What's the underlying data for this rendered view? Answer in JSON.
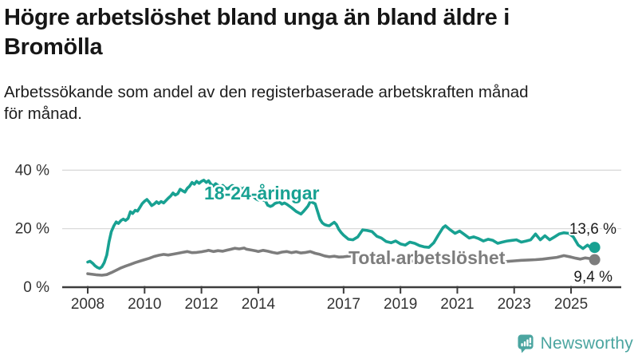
{
  "header": {},
  "chart_data": {
    "type": "line",
    "title": "Högre arbetslöshet bland unga än bland äldre i\nBromölla",
    "subtitle": "Arbetssökande som andel av den registerbaserade arbetskraften månad\nför månad.",
    "x_unit": "year (decimal = monthly values)",
    "xlim": [
      2007.1,
      2026.75
    ],
    "ylim": [
      0,
      43
    ],
    "grid": "horizontal",
    "y_ticks": [
      {
        "value": 0,
        "label": "0 %"
      },
      {
        "value": 20,
        "label": "20 %"
      },
      {
        "value": 40,
        "label": "40 %"
      }
    ],
    "x_ticks": [
      {
        "value": 2008,
        "label": "2008"
      },
      {
        "value": 2010,
        "label": "2010"
      },
      {
        "value": 2012,
        "label": "2012"
      },
      {
        "value": 2014,
        "label": "2014"
      },
      {
        "value": 2017,
        "label": "2017"
      },
      {
        "value": 2019,
        "label": "2019"
      },
      {
        "value": 2021,
        "label": "2021"
      },
      {
        "value": 2023,
        "label": "2023"
      },
      {
        "value": 2025,
        "label": "2025"
      }
    ],
    "legend_position": "inline-labels-on-lines",
    "series": [
      {
        "name": "18-24-åringar",
        "color": "#18a192",
        "end_label": "13,6 %",
        "end_value": 13.6,
        "points": [
          [
            2008.0,
            8.6
          ],
          [
            2008.08,
            8.9
          ],
          [
            2008.17,
            8.2
          ],
          [
            2008.25,
            7.4
          ],
          [
            2008.33,
            6.8
          ],
          [
            2008.42,
            6.4
          ],
          [
            2008.5,
            7.0
          ],
          [
            2008.58,
            8.4
          ],
          [
            2008.67,
            11.0
          ],
          [
            2008.75,
            15.5
          ],
          [
            2008.83,
            19.0
          ],
          [
            2008.92,
            21.0
          ],
          [
            2009.0,
            22.3
          ],
          [
            2009.08,
            21.8
          ],
          [
            2009.17,
            22.8
          ],
          [
            2009.25,
            23.3
          ],
          [
            2009.33,
            22.8
          ],
          [
            2009.42,
            23.5
          ],
          [
            2009.5,
            25.8
          ],
          [
            2009.58,
            25.2
          ],
          [
            2009.67,
            26.3
          ],
          [
            2009.75,
            26.0
          ],
          [
            2009.83,
            27.2
          ],
          [
            2009.92,
            28.6
          ],
          [
            2010.0,
            29.4
          ],
          [
            2010.08,
            30.0
          ],
          [
            2010.17,
            29.0
          ],
          [
            2010.25,
            27.9
          ],
          [
            2010.33,
            28.4
          ],
          [
            2010.42,
            29.2
          ],
          [
            2010.5,
            28.6
          ],
          [
            2010.58,
            29.3
          ],
          [
            2010.67,
            28.8
          ],
          [
            2010.75,
            29.6
          ],
          [
            2010.83,
            30.4
          ],
          [
            2010.92,
            31.2
          ],
          [
            2011.0,
            32.2
          ],
          [
            2011.08,
            31.5
          ],
          [
            2011.17,
            32.0
          ],
          [
            2011.25,
            33.5
          ],
          [
            2011.33,
            33.0
          ],
          [
            2011.42,
            32.5
          ],
          [
            2011.5,
            33.8
          ],
          [
            2011.58,
            34.5
          ],
          [
            2011.67,
            35.8
          ],
          [
            2011.75,
            35.2
          ],
          [
            2011.83,
            36.2
          ],
          [
            2011.92,
            35.5
          ],
          [
            2012.0,
            36.2
          ],
          [
            2012.08,
            36.6
          ],
          [
            2012.17,
            35.8
          ],
          [
            2012.25,
            36.4
          ],
          [
            2012.33,
            35.2
          ],
          [
            2012.42,
            34.6
          ],
          [
            2012.5,
            35.4
          ],
          [
            2012.58,
            34.8
          ],
          [
            2012.67,
            34.2
          ],
          [
            2012.75,
            34.8
          ],
          [
            2012.83,
            34.0
          ],
          [
            2012.92,
            33.6
          ],
          [
            2013.0,
            34.2
          ],
          [
            2013.08,
            34.8
          ],
          [
            2013.17,
            34.4
          ],
          [
            2013.25,
            33.8
          ],
          [
            2013.33,
            34.2
          ],
          [
            2013.42,
            33.6
          ],
          [
            2013.5,
            34.0
          ],
          [
            2013.58,
            33.4
          ],
          [
            2013.67,
            32.6
          ],
          [
            2013.75,
            31.8
          ],
          [
            2013.83,
            31.0
          ],
          [
            2013.92,
            30.2
          ],
          [
            2014.0,
            29.8
          ],
          [
            2014.08,
            30.2
          ],
          [
            2014.17,
            29.8
          ],
          [
            2014.25,
            29.5
          ],
          [
            2014.33,
            28.0
          ],
          [
            2014.42,
            27.6
          ],
          [
            2014.5,
            27.9
          ],
          [
            2014.58,
            28.6
          ],
          [
            2014.67,
            28.9
          ],
          [
            2014.75,
            29.1
          ],
          [
            2014.83,
            28.4
          ],
          [
            2014.92,
            28.8
          ],
          [
            2015.0,
            28.4
          ],
          [
            2015.17,
            27.2
          ],
          [
            2015.33,
            25.9
          ],
          [
            2015.5,
            25.0
          ],
          [
            2015.58,
            25.8
          ],
          [
            2015.67,
            26.8
          ],
          [
            2015.75,
            27.8
          ],
          [
            2015.83,
            29.3
          ],
          [
            2015.92,
            28.9
          ],
          [
            2016.0,
            28.5
          ],
          [
            2016.08,
            26.0
          ],
          [
            2016.17,
            23.2
          ],
          [
            2016.25,
            22.0
          ],
          [
            2016.33,
            21.4
          ],
          [
            2016.42,
            21.1
          ],
          [
            2016.5,
            21.0
          ],
          [
            2016.58,
            21.6
          ],
          [
            2016.67,
            22.2
          ],
          [
            2016.75,
            21.4
          ],
          [
            2016.83,
            19.8
          ],
          [
            2016.92,
            18.6
          ],
          [
            2017.0,
            17.8
          ],
          [
            2017.17,
            16.4
          ],
          [
            2017.33,
            16.2
          ],
          [
            2017.5,
            17.2
          ],
          [
            2017.67,
            19.6
          ],
          [
            2017.83,
            19.4
          ],
          [
            2018.0,
            19.0
          ],
          [
            2018.17,
            17.4
          ],
          [
            2018.33,
            16.8
          ],
          [
            2018.5,
            15.6
          ],
          [
            2018.67,
            15.2
          ],
          [
            2018.83,
            15.8
          ],
          [
            2019.0,
            14.8
          ],
          [
            2019.17,
            14.4
          ],
          [
            2019.33,
            15.4
          ],
          [
            2019.5,
            15.0
          ],
          [
            2019.67,
            14.2
          ],
          [
            2019.83,
            13.8
          ],
          [
            2020.0,
            13.6
          ],
          [
            2020.17,
            15.2
          ],
          [
            2020.33,
            17.8
          ],
          [
            2020.5,
            20.4
          ],
          [
            2020.58,
            21.0
          ],
          [
            2020.75,
            19.6
          ],
          [
            2020.92,
            18.4
          ],
          [
            2021.08,
            19.2
          ],
          [
            2021.25,
            18.0
          ],
          [
            2021.42,
            16.8
          ],
          [
            2021.58,
            17.2
          ],
          [
            2021.75,
            16.6
          ],
          [
            2021.92,
            15.8
          ],
          [
            2022.08,
            16.4
          ],
          [
            2022.25,
            16.0
          ],
          [
            2022.42,
            15.0
          ],
          [
            2022.58,
            15.4
          ],
          [
            2022.75,
            15.8
          ],
          [
            2022.92,
            16.0
          ],
          [
            2023.08,
            16.2
          ],
          [
            2023.25,
            15.4
          ],
          [
            2023.42,
            15.8
          ],
          [
            2023.58,
            16.2
          ],
          [
            2023.75,
            18.2
          ],
          [
            2023.92,
            16.2
          ],
          [
            2024.08,
            17.6
          ],
          [
            2024.25,
            16.2
          ],
          [
            2024.42,
            17.2
          ],
          [
            2024.58,
            18.2
          ],
          [
            2024.75,
            18.6
          ],
          [
            2024.92,
            18.4
          ],
          [
            2025.08,
            17.2
          ],
          [
            2025.25,
            14.4
          ],
          [
            2025.42,
            13.2
          ],
          [
            2025.58,
            14.4
          ],
          [
            2025.75,
            13.0
          ],
          [
            2025.83,
            13.6
          ]
        ]
      },
      {
        "name": "Total arbetslöshet",
        "color": "#7d7d7d",
        "end_label": "9,4 %",
        "end_value": 9.4,
        "points": [
          [
            2008.0,
            4.6
          ],
          [
            2008.17,
            4.4
          ],
          [
            2008.33,
            4.2
          ],
          [
            2008.5,
            4.1
          ],
          [
            2008.67,
            4.3
          ],
          [
            2008.83,
            5.0
          ],
          [
            2009.0,
            5.8
          ],
          [
            2009.17,
            6.6
          ],
          [
            2009.33,
            7.2
          ],
          [
            2009.5,
            7.8
          ],
          [
            2009.67,
            8.4
          ],
          [
            2009.83,
            8.9
          ],
          [
            2010.0,
            9.4
          ],
          [
            2010.17,
            9.9
          ],
          [
            2010.33,
            10.5
          ],
          [
            2010.5,
            10.9
          ],
          [
            2010.67,
            11.2
          ],
          [
            2010.83,
            11.0
          ],
          [
            2011.0,
            11.3
          ],
          [
            2011.17,
            11.6
          ],
          [
            2011.33,
            11.9
          ],
          [
            2011.5,
            12.2
          ],
          [
            2011.67,
            11.8
          ],
          [
            2011.83,
            11.9
          ],
          [
            2012.0,
            12.1
          ],
          [
            2012.17,
            12.4
          ],
          [
            2012.25,
            12.6
          ],
          [
            2012.42,
            12.2
          ],
          [
            2012.58,
            12.5
          ],
          [
            2012.75,
            12.3
          ],
          [
            2012.92,
            12.7
          ],
          [
            2013.0,
            12.9
          ],
          [
            2013.17,
            13.3
          ],
          [
            2013.33,
            13.1
          ],
          [
            2013.5,
            13.4
          ],
          [
            2013.58,
            13.0
          ],
          [
            2013.75,
            12.7
          ],
          [
            2013.92,
            12.4
          ],
          [
            2014.0,
            12.2
          ],
          [
            2014.17,
            12.6
          ],
          [
            2014.33,
            12.3
          ],
          [
            2014.5,
            11.9
          ],
          [
            2014.67,
            11.6
          ],
          [
            2014.83,
            12.0
          ],
          [
            2015.0,
            12.2
          ],
          [
            2015.17,
            11.8
          ],
          [
            2015.33,
            12.1
          ],
          [
            2015.5,
            11.7
          ],
          [
            2015.67,
            11.9
          ],
          [
            2015.83,
            12.2
          ],
          [
            2016.0,
            11.6
          ],
          [
            2016.17,
            11.2
          ],
          [
            2016.33,
            10.7
          ],
          [
            2016.5,
            10.4
          ],
          [
            2016.67,
            10.6
          ],
          [
            2016.83,
            10.3
          ],
          [
            2017.0,
            10.4
          ],
          [
            2017.25,
            10.7
          ],
          [
            2017.5,
            10.2
          ],
          [
            2017.75,
            10.4
          ],
          [
            2018.0,
            10.1
          ],
          [
            2018.25,
            9.8
          ],
          [
            2018.5,
            9.5
          ],
          [
            2018.75,
            9.3
          ],
          [
            2019.0,
            9.2
          ],
          [
            2019.25,
            9.0
          ],
          [
            2019.5,
            8.9
          ],
          [
            2019.75,
            8.8
          ],
          [
            2020.0,
            8.7
          ],
          [
            2020.25,
            9.0
          ],
          [
            2020.5,
            9.4
          ],
          [
            2020.75,
            9.2
          ],
          [
            2021.0,
            9.0
          ],
          [
            2021.25,
            8.9
          ],
          [
            2021.5,
            8.8
          ],
          [
            2021.75,
            8.7
          ],
          [
            2022.0,
            8.6
          ],
          [
            2022.25,
            8.7
          ],
          [
            2022.5,
            8.7
          ],
          [
            2022.75,
            8.8
          ],
          [
            2023.0,
            9.0
          ],
          [
            2023.25,
            9.2
          ],
          [
            2023.5,
            9.3
          ],
          [
            2023.75,
            9.4
          ],
          [
            2024.0,
            9.6
          ],
          [
            2024.25,
            9.9
          ],
          [
            2024.5,
            10.2
          ],
          [
            2024.75,
            10.8
          ],
          [
            2025.0,
            10.3
          ],
          [
            2025.17,
            9.9
          ],
          [
            2025.33,
            9.6
          ],
          [
            2025.5,
            10.0
          ],
          [
            2025.67,
            9.8
          ],
          [
            2025.83,
            9.4
          ]
        ]
      }
    ],
    "colors": {
      "grid": "#dadada",
      "axis": "#3d3d3d",
      "tick_text": "#333333",
      "value_label_text": "#1a1a1a"
    }
  },
  "footer": {
    "brand": "Newsworthy",
    "logo_icon": "bar-chart-speech-bubble",
    "brand_color": "#4ba5a0"
  }
}
